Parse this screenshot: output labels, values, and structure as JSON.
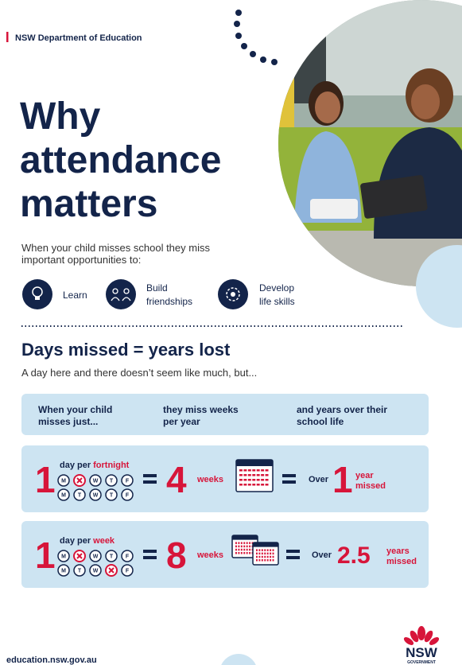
{
  "header": {
    "org": "NSW Department of Education"
  },
  "title": [
    "Why",
    "attendance",
    "matters"
  ],
  "intro": [
    "When your child misses school they miss",
    "important opportunities to:"
  ],
  "opportunities": [
    [
      "Learn"
    ],
    [
      "Build",
      "friendships"
    ],
    [
      "Develop",
      "life skills"
    ]
  ],
  "section": {
    "title": "Days missed = years lost",
    "subtitle": "A day here and there doesn’t seem like much, but..."
  },
  "table": {
    "headers": [
      [
        "When your child",
        "misses just..."
      ],
      [
        "they miss weeks",
        "per year"
      ],
      [
        "and years over their",
        "school life"
      ]
    ],
    "rows": [
      {
        "days": 1,
        "unit_prefix": "day per",
        "unit": "fortnight",
        "weekdays": [
          [
            "M",
            null,
            "W",
            "T",
            "F"
          ],
          [
            "M",
            "T",
            "W",
            "T",
            "F"
          ]
        ],
        "weeks": 4,
        "weeks_label": "weeks",
        "over": "Over",
        "years": 1,
        "years_label": [
          "year",
          "missed"
        ]
      },
      {
        "days": 1,
        "unit_prefix": "day per",
        "unit": "week",
        "weekdays": [
          [
            "M",
            null,
            "W",
            "T",
            "F"
          ],
          [
            "M",
            "T",
            "W",
            null,
            "F"
          ]
        ],
        "weeks": 8,
        "weeks_label": "weeks",
        "over": "Over",
        "years": 2.5,
        "years_label": [
          "years",
          "missed"
        ]
      }
    ]
  },
  "footer": {
    "url": "education.nsw.gov.au",
    "logo": "NSW",
    "logo_sub": "GOVERNMENT"
  }
}
